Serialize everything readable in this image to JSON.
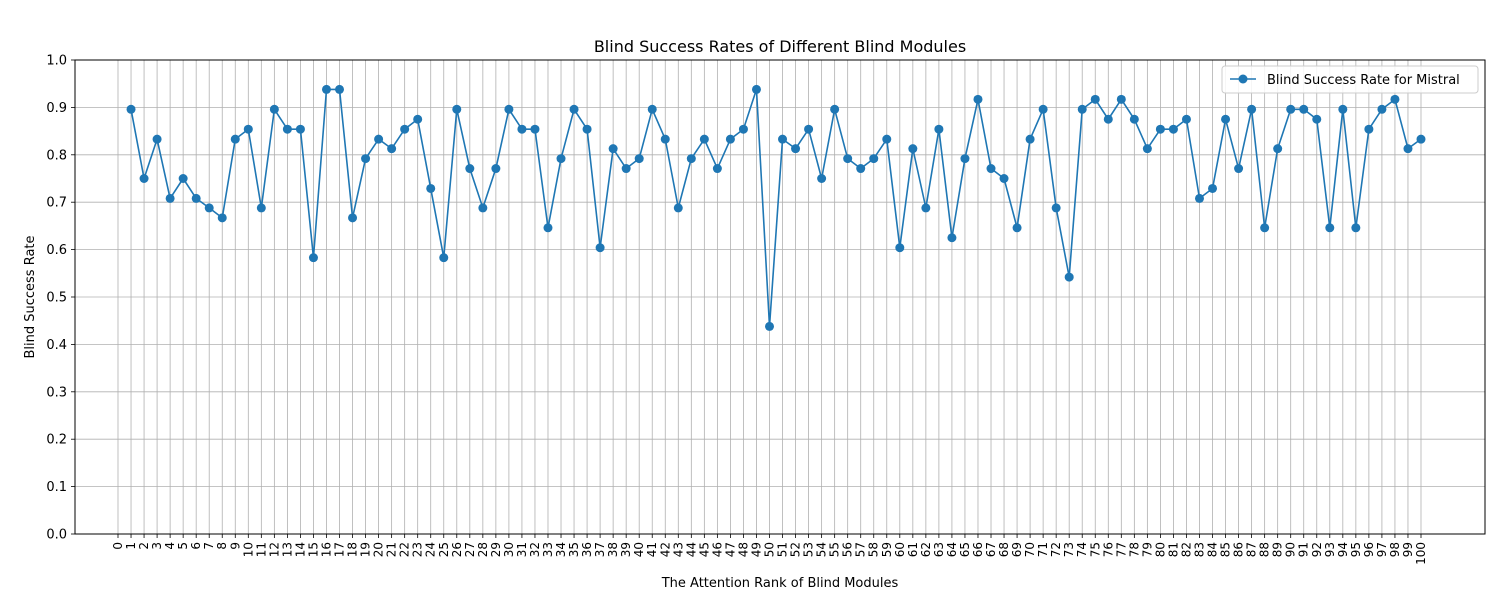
{
  "chart_data": {
    "type": "line",
    "title": "Blind Success Rates of Different Blind Modules",
    "xlabel": "The Attention Rank of Blind Modules",
    "ylabel": "Blind Success Rate",
    "xlim": [
      0,
      100
    ],
    "ylim": [
      0,
      1.0
    ],
    "x_ticks": [
      0,
      1,
      2,
      3,
      4,
      5,
      6,
      7,
      8,
      9,
      10,
      11,
      12,
      13,
      14,
      15,
      16,
      17,
      18,
      19,
      20,
      21,
      22,
      23,
      24,
      25,
      26,
      27,
      28,
      29,
      30,
      31,
      32,
      33,
      34,
      35,
      36,
      37,
      38,
      39,
      40,
      41,
      42,
      43,
      44,
      45,
      46,
      47,
      48,
      49,
      50,
      51,
      52,
      53,
      54,
      55,
      56,
      57,
      58,
      59,
      60,
      61,
      62,
      63,
      64,
      65,
      66,
      67,
      68,
      69,
      70,
      71,
      72,
      73,
      74,
      75,
      76,
      77,
      78,
      79,
      80,
      81,
      82,
      83,
      84,
      85,
      86,
      87,
      88,
      89,
      90,
      91,
      92,
      93,
      94,
      95,
      96,
      97,
      98,
      99,
      100
    ],
    "y_ticks": [
      "0.0",
      "0.1",
      "0.2",
      "0.3",
      "0.4",
      "0.5",
      "0.6",
      "0.7",
      "0.8",
      "0.9",
      "1.0"
    ],
    "grid": true,
    "legend_position": "top-right",
    "marker": "circle",
    "color": "#1f77b4",
    "series": [
      {
        "name": "Blind Success Rate for Mistral",
        "x": [
          1,
          2,
          3,
          4,
          5,
          6,
          7,
          8,
          9,
          10,
          11,
          12,
          13,
          14,
          15,
          16,
          17,
          18,
          19,
          20,
          21,
          22,
          23,
          24,
          25,
          26,
          27,
          28,
          29,
          30,
          31,
          32,
          33,
          34,
          35,
          36,
          37,
          38,
          39,
          40,
          41,
          42,
          43,
          44,
          45,
          46,
          47,
          48,
          49,
          50,
          51,
          52,
          53,
          54,
          55,
          56,
          57,
          58,
          59,
          60,
          61,
          62,
          63,
          64,
          65,
          66,
          67,
          68,
          69,
          70,
          71,
          72,
          73,
          74,
          75,
          76,
          77,
          78,
          79,
          80,
          81,
          82,
          83,
          84,
          85,
          86,
          87,
          88,
          89,
          90,
          91,
          92,
          93,
          94,
          95,
          96,
          97,
          98,
          99,
          100
        ],
        "values": [
          0.896,
          0.75,
          0.833,
          0.708,
          0.75,
          0.708,
          0.688,
          0.667,
          0.833,
          0.854,
          0.688,
          0.896,
          0.854,
          0.854,
          0.583,
          0.938,
          0.938,
          0.667,
          0.792,
          0.833,
          0.813,
          0.854,
          0.875,
          0.729,
          0.583,
          0.896,
          0.771,
          0.688,
          0.771,
          0.896,
          0.854,
          0.854,
          0.646,
          0.792,
          0.896,
          0.854,
          0.604,
          0.813,
          0.771,
          0.792,
          0.896,
          0.833,
          0.688,
          0.792,
          0.833,
          0.771,
          0.833,
          0.854,
          0.938,
          0.438,
          0.833,
          0.813,
          0.854,
          0.75,
          0.896,
          0.792,
          0.771,
          0.792,
          0.833,
          0.604,
          0.813,
          0.688,
          0.854,
          0.625,
          0.792,
          0.917,
          0.771,
          0.75,
          0.646,
          0.833,
          0.896,
          0.688,
          0.542,
          0.896,
          0.917,
          0.875,
          0.917,
          0.875,
          0.813,
          0.854,
          0.854,
          0.875,
          0.708,
          0.729,
          0.875,
          0.771,
          0.896,
          0.646,
          0.813,
          0.896,
          0.896,
          0.875,
          0.646,
          0.896,
          0.646,
          0.854,
          0.896,
          0.917,
          0.813,
          0.833
        ]
      }
    ]
  }
}
